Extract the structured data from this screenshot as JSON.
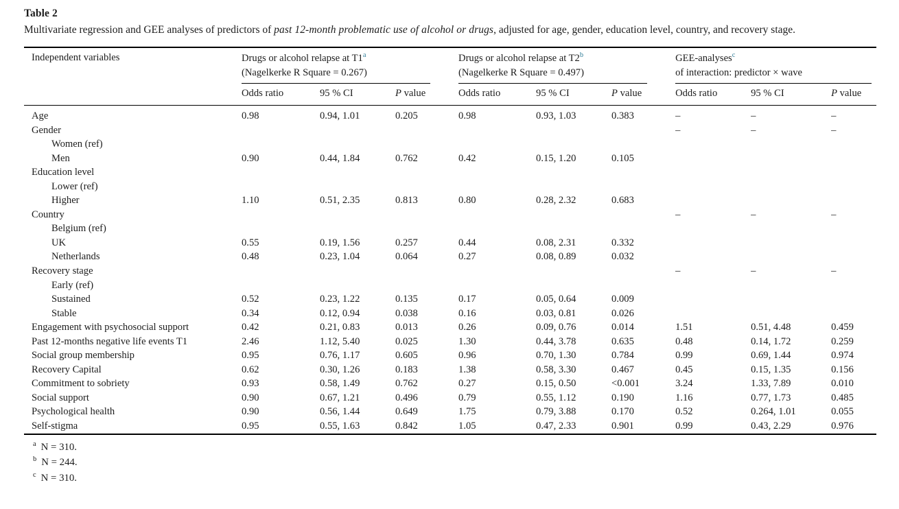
{
  "colors": {
    "background": "#ffffff",
    "text": "#1c1c1c",
    "rule": "#000000",
    "footnote_marker_teal": "#337f99"
  },
  "table": {
    "label": "Table 2",
    "caption_prefix": "Multivariate regression and GEE analyses of predictors of ",
    "caption_italic": "past 12-month problematic use of alcohol or drugs",
    "caption_suffix": ", adjusted for age, gender, education level, country, and recovery stage.",
    "first_col_header": "Independent variables",
    "col_groups": [
      {
        "title_line1": "Drugs or alcohol relapse at T1",
        "footnote_mark": "a",
        "title_line2": "(Nagelkerke R Square = 0.267)"
      },
      {
        "title_line1": "Drugs or alcohol relapse at T2",
        "footnote_mark": "b",
        "title_line2": "(Nagelkerke R Square = 0.497)"
      },
      {
        "title_line1": "GEE-analyses",
        "footnote_mark": "c",
        "title_line2": "of interaction: predictor × wave"
      }
    ],
    "sub_headers": [
      "Odds ratio",
      "95 % CI",
      "P value"
    ],
    "rows": [
      {
        "label": "Age",
        "indent": false,
        "cells": [
          "0.98",
          "0.94, 1.01",
          "0.205",
          "0.98",
          "0.93, 1.03",
          "0.383",
          "–",
          "–",
          "–"
        ]
      },
      {
        "label": "Gender",
        "indent": false,
        "cells": [
          "",
          "",
          "",
          "",
          "",
          "",
          "–",
          "–",
          "–"
        ]
      },
      {
        "label": "Women (ref)",
        "indent": true,
        "cells": [
          "",
          "",
          "",
          "",
          "",
          "",
          "",
          "",
          ""
        ]
      },
      {
        "label": "Men",
        "indent": true,
        "cells": [
          "0.90",
          "0.44, 1.84",
          "0.762",
          "0.42",
          "0.15, 1.20",
          "0.105",
          "",
          "",
          ""
        ]
      },
      {
        "label": "Education level",
        "indent": false,
        "cells": [
          "",
          "",
          "",
          "",
          "",
          "",
          "",
          "",
          ""
        ]
      },
      {
        "label": "Lower (ref)",
        "indent": true,
        "cells": [
          "",
          "",
          "",
          "",
          "",
          "",
          "",
          "",
          ""
        ]
      },
      {
        "label": "Higher",
        "indent": true,
        "cells": [
          "1.10",
          "0.51, 2.35",
          "0.813",
          "0.80",
          "0.28, 2.32",
          "0.683",
          "",
          "",
          ""
        ]
      },
      {
        "label": "Country",
        "indent": false,
        "cells": [
          "",
          "",
          "",
          "",
          "",
          "",
          "–",
          "–",
          "–"
        ]
      },
      {
        "label": "Belgium (ref)",
        "indent": true,
        "cells": [
          "",
          "",
          "",
          "",
          "",
          "",
          "",
          "",
          ""
        ]
      },
      {
        "label": "UK",
        "indent": true,
        "cells": [
          "0.55",
          "0.19, 1.56",
          "0.257",
          "0.44",
          "0.08, 2.31",
          "0.332",
          "",
          "",
          ""
        ]
      },
      {
        "label": "Netherlands",
        "indent": true,
        "cells": [
          "0.48",
          "0.23, 1.04",
          "0.064",
          "0.27",
          "0.08, 0.89",
          "0.032",
          "",
          "",
          ""
        ]
      },
      {
        "label": "Recovery stage",
        "indent": false,
        "cells": [
          "",
          "",
          "",
          "",
          "",
          "",
          "–",
          "–",
          "–"
        ]
      },
      {
        "label": "Early (ref)",
        "indent": true,
        "cells": [
          "",
          "",
          "",
          "",
          "",
          "",
          "",
          "",
          ""
        ]
      },
      {
        "label": "Sustained",
        "indent": true,
        "cells": [
          "0.52",
          "0.23, 1.22",
          "0.135",
          "0.17",
          "0.05, 0.64",
          "0.009",
          "",
          "",
          ""
        ]
      },
      {
        "label": "Stable",
        "indent": true,
        "cells": [
          "0.34",
          "0.12, 0.94",
          "0.038",
          "0.16",
          "0.03, 0.81",
          "0.026",
          "",
          "",
          ""
        ]
      },
      {
        "label": "Engagement with psychosocial support",
        "indent": false,
        "cells": [
          "0.42",
          "0.21, 0.83",
          "0.013",
          "0.26",
          "0.09, 0.76",
          "0.014",
          "1.51",
          "0.51, 4.48",
          "0.459"
        ]
      },
      {
        "label": "Past 12-months negative life events T1",
        "indent": false,
        "cells": [
          "2.46",
          "1.12, 5.40",
          "0.025",
          "1.30",
          "0.44, 3.78",
          "0.635",
          "0.48",
          "0.14, 1.72",
          "0.259"
        ]
      },
      {
        "label": "Social group membership",
        "indent": false,
        "cells": [
          "0.95",
          "0.76, 1.17",
          "0.605",
          "0.96",
          "0.70, 1.30",
          "0.784",
          "0.99",
          "0.69, 1.44",
          "0.974"
        ]
      },
      {
        "label": "Recovery Capital",
        "indent": false,
        "cells": [
          "0.62",
          "0.30, 1.26",
          "0.183",
          "1.38",
          "0.58, 3.30",
          "0.467",
          "0.45",
          "0.15, 1.35",
          "0.156"
        ]
      },
      {
        "label": "Commitment to sobriety",
        "indent": false,
        "cells": [
          "0.93",
          "0.58, 1.49",
          "0.762",
          "0.27",
          "0.15, 0.50",
          "<0.001",
          "3.24",
          "1.33, 7.89",
          "0.010"
        ]
      },
      {
        "label": "Social support",
        "indent": false,
        "cells": [
          "0.90",
          "0.67, 1.21",
          "0.496",
          "0.79",
          "0.55, 1.12",
          "0.190",
          "1.16",
          "0.77, 1.73",
          "0.485"
        ]
      },
      {
        "label": "Psychological health",
        "indent": false,
        "cells": [
          "0.90",
          "0.56, 1.44",
          "0.649",
          "1.75",
          "0.79, 3.88",
          "0.170",
          "0.52",
          "0.264, 1.01",
          "0.055"
        ]
      },
      {
        "label": "Self-stigma",
        "indent": false,
        "cells": [
          "0.95",
          "0.55, 1.63",
          "0.842",
          "1.05",
          "0.47, 2.33",
          "0.901",
          "0.99",
          "0.43, 2.29",
          "0.976"
        ]
      }
    ],
    "footnotes": [
      {
        "mark": "a",
        "text": "N = 310."
      },
      {
        "mark": "b",
        "text": "N = 244."
      },
      {
        "mark": "c",
        "text": "N = 310."
      }
    ]
  }
}
